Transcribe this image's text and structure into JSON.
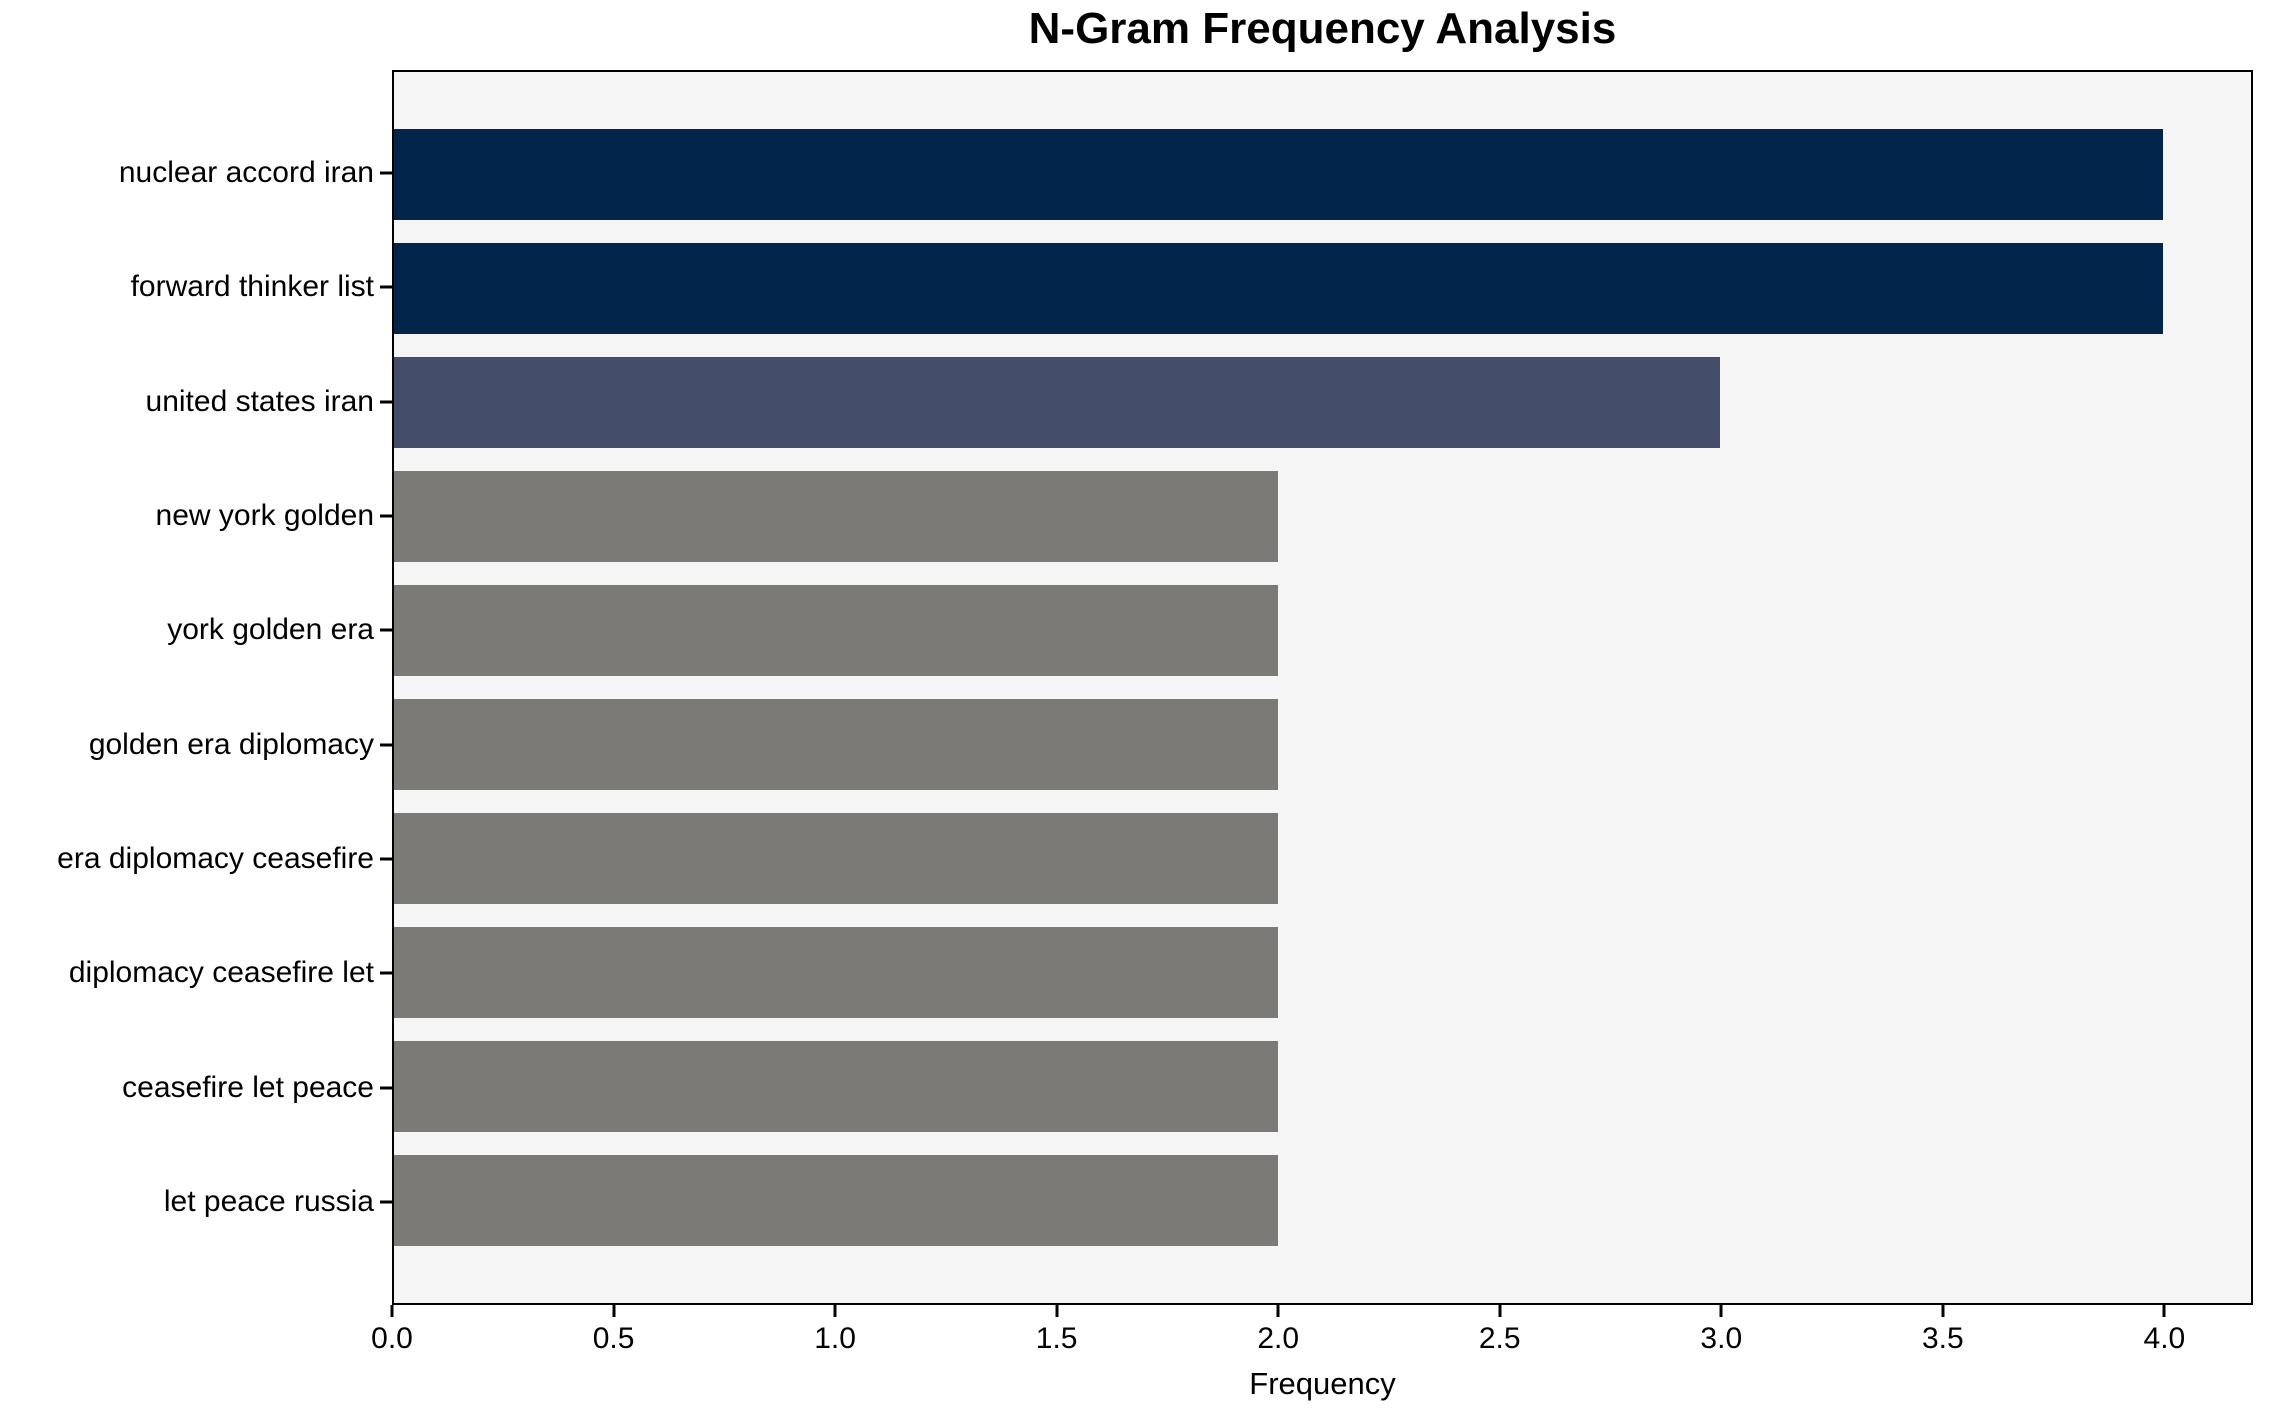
{
  "chart_data": {
    "type": "bar",
    "orientation": "horizontal",
    "title": "N-Gram Frequency Analysis",
    "xlabel": "Frequency",
    "ylabel": "",
    "categories": [
      "nuclear accord iran",
      "forward thinker list",
      "united states iran",
      "new york golden",
      "york golden era",
      "golden era diplomacy",
      "era diplomacy ceasefire",
      "diplomacy ceasefire let",
      "ceasefire let peace",
      "let peace russia"
    ],
    "values": [
      4,
      4,
      3,
      2,
      2,
      2,
      2,
      2,
      2,
      2
    ],
    "bar_colors": [
      "#02254C",
      "#02254C",
      "#444E6B",
      "#7B7A77",
      "#7B7A77",
      "#7B7A77",
      "#7B7A77",
      "#7B7A77",
      "#7B7A77",
      "#7B7A77"
    ],
    "xlim": [
      0,
      4.2
    ],
    "xticks": [
      0,
      0.5,
      1,
      1.5,
      2,
      2.5,
      3,
      3.5,
      4
    ],
    "xtick_decimals": 1,
    "grid": false,
    "legend": false,
    "plot_background": "#F5F5F5",
    "axis_color": "#000000",
    "text_color": "#000000"
  }
}
